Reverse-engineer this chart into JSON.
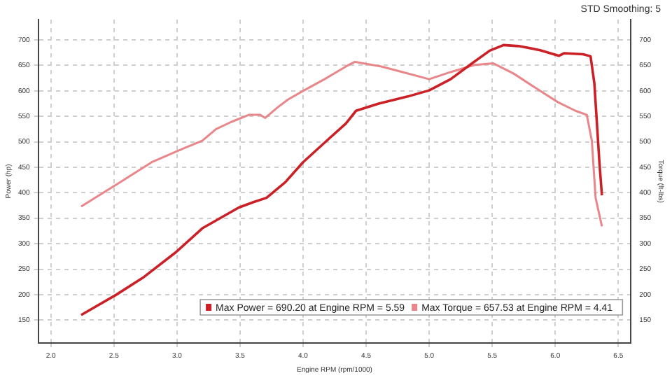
{
  "chart_data": {
    "type": "line",
    "xlabel": "Engine RPM (rpm/1000)",
    "ylabel": "Power (hp)",
    "y2label": "Torque (ft-lbs)",
    "annotations": [
      "STD Smoothing: 5"
    ],
    "x": [
      2.24,
      2.52,
      2.74,
      2.99,
      3.2,
      3.49,
      3.61,
      3.71,
      3.86,
      4.0,
      4.2,
      4.34,
      4.42,
      4.6,
      4.83,
      5.0,
      5.17,
      5.34,
      5.48,
      5.59,
      5.71,
      5.88,
      6.03,
      6.07,
      6.22,
      6.28,
      6.31,
      6.35,
      6.37
    ],
    "series": [
      {
        "name": "Max Power = 690.20 at Engine RPM = 5.59",
        "color": "#cc2027",
        "values": [
          160,
          200,
          235,
          283,
          330,
          371,
          382,
          390,
          421,
          460,
          505,
          536,
          561,
          575,
          589,
          601,
          623,
          654,
          679,
          690,
          688,
          680,
          669,
          674,
          672,
          668,
          615,
          460,
          395
        ]
      },
      {
        "name": "Max Torque = 657.53 at Engine RPM = 4.41",
        "color": "#e8868a",
        "x": [
          2.24,
          2.57,
          2.8,
          3.06,
          3.2,
          3.31,
          3.43,
          3.57,
          3.66,
          3.7,
          3.8,
          3.88,
          4.0,
          4.17,
          4.34,
          4.41,
          4.62,
          4.79,
          5.0,
          5.17,
          5.36,
          5.51,
          5.67,
          5.88,
          6.02,
          6.16,
          6.25,
          6.29,
          6.32,
          6.37
        ],
        "values": [
          373,
          424,
          460,
          488,
          502,
          525,
          539,
          553,
          553,
          547,
          568,
          583,
          600,
          623,
          648,
          657,
          648,
          637,
          623,
          637,
          651,
          654,
          634,
          600,
          578,
          561,
          553,
          502,
          390,
          334
        ]
      }
    ],
    "xlim": [
      1.9,
      6.6
    ],
    "xticks": [
      {
        "value": 2,
        "label": "2.0"
      },
      {
        "value": 2.5,
        "label": "2.5"
      },
      {
        "value": 3,
        "label": "3.0"
      },
      {
        "value": 3.5,
        "label": "3.5"
      },
      {
        "value": 4,
        "label": "4.0"
      },
      {
        "value": 4.5,
        "label": "4.5"
      },
      {
        "value": 5,
        "label": "5.0"
      },
      {
        "value": 5.5,
        "label": "5.5"
      },
      {
        "value": 6,
        "label": "6.0"
      },
      {
        "value": 6.5,
        "label": "6.5"
      }
    ],
    "ylim": [
      105,
      740
    ],
    "yticks": [
      150,
      200,
      250,
      300,
      350,
      400,
      450,
      500,
      550,
      600,
      650,
      700
    ],
    "y2lim": [
      105,
      740
    ],
    "y2ticks": [
      150,
      200,
      250,
      300,
      350,
      400,
      450,
      500,
      550,
      600,
      650,
      700
    ],
    "grid": true,
    "legend": "bottom right",
    "marker": "none",
    "line_style": "solid"
  }
}
